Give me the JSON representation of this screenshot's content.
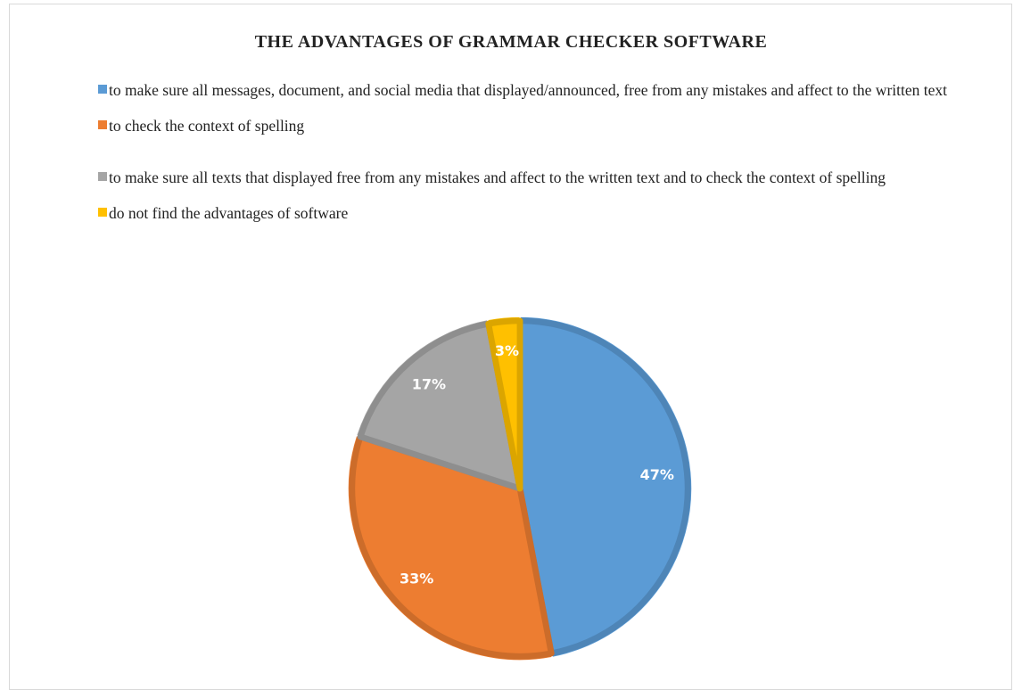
{
  "chart_data": {
    "type": "pie",
    "title": "THE ADVANTAGES OF GRAMMAR CHECKER SOFTWARE",
    "categories": [
      "to make sure all messages, document, and social media that displayed/announced, free from any mistakes and affect to the written text",
      "to check the context of spelling",
      "to make sure all texts that displayed free from  any mistakes and  affect to the written text and  to check the context of spelling",
      "do not find the advantages of software"
    ],
    "values": [
      47,
      33,
      17,
      3
    ],
    "value_labels": [
      "47%",
      "33%",
      "17%",
      "3%"
    ],
    "colors": [
      "#5b9bd5",
      "#ed7d31",
      "#a5a5a5",
      "#ffc000"
    ],
    "legend": "top"
  }
}
